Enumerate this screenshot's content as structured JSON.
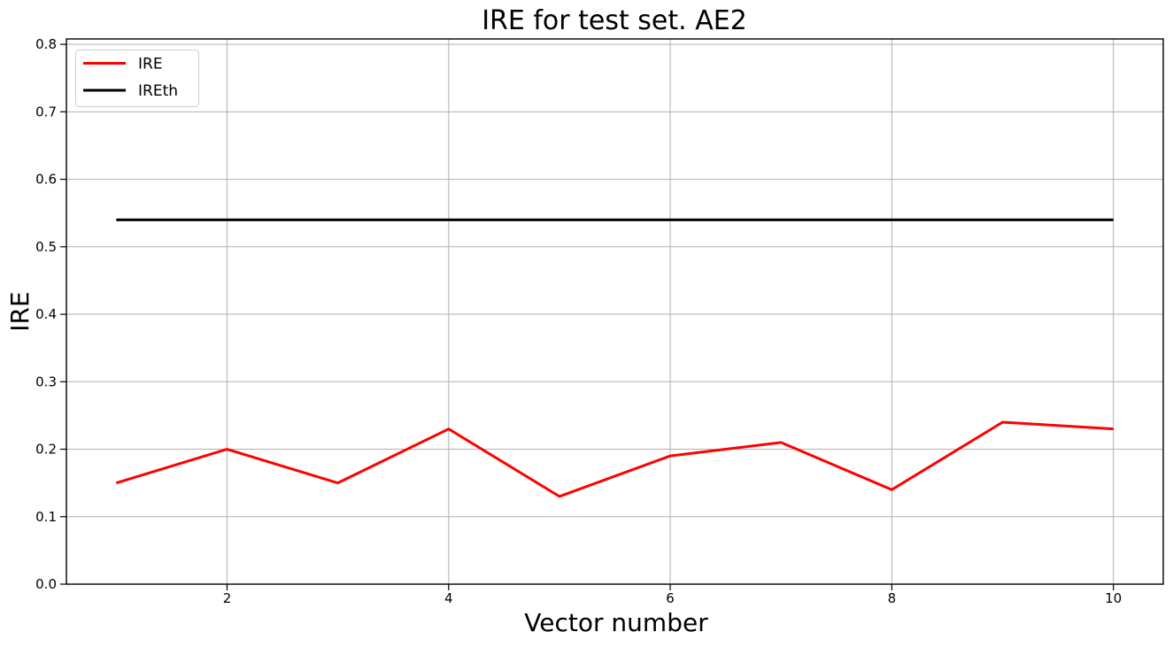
{
  "chart_data": {
    "type": "line",
    "title": "IRE for test set. AE2",
    "xlabel": "Vector number",
    "ylabel": "IRE",
    "x": [
      1,
      2,
      3,
      4,
      5,
      6,
      7,
      8,
      9,
      10
    ],
    "series": [
      {
        "name": "IRE",
        "color": "#ff0000",
        "line_width": 3,
        "values": [
          0.15,
          0.2,
          0.15,
          0.23,
          0.13,
          0.19,
          0.21,
          0.14,
          0.24,
          0.23
        ]
      },
      {
        "name": "IREth",
        "color": "#000000",
        "line_width": 3,
        "values": [
          0.54,
          0.54,
          0.54,
          0.54,
          0.54,
          0.54,
          0.54,
          0.54,
          0.54,
          0.54
        ]
      }
    ],
    "xlim": [
      0.55,
      10.45
    ],
    "ylim": [
      0,
      0.808
    ],
    "xticks": [
      2,
      4,
      6,
      8,
      10
    ],
    "yticks": [
      0.0,
      0.1,
      0.2,
      0.3,
      0.4,
      0.5,
      0.6,
      0.7,
      0.8
    ],
    "grid": true,
    "grid_color": "#b0b0b0",
    "background_color": "#ffffff",
    "legend_position": "upper left",
    "legend_border_color": "#cccccc"
  }
}
